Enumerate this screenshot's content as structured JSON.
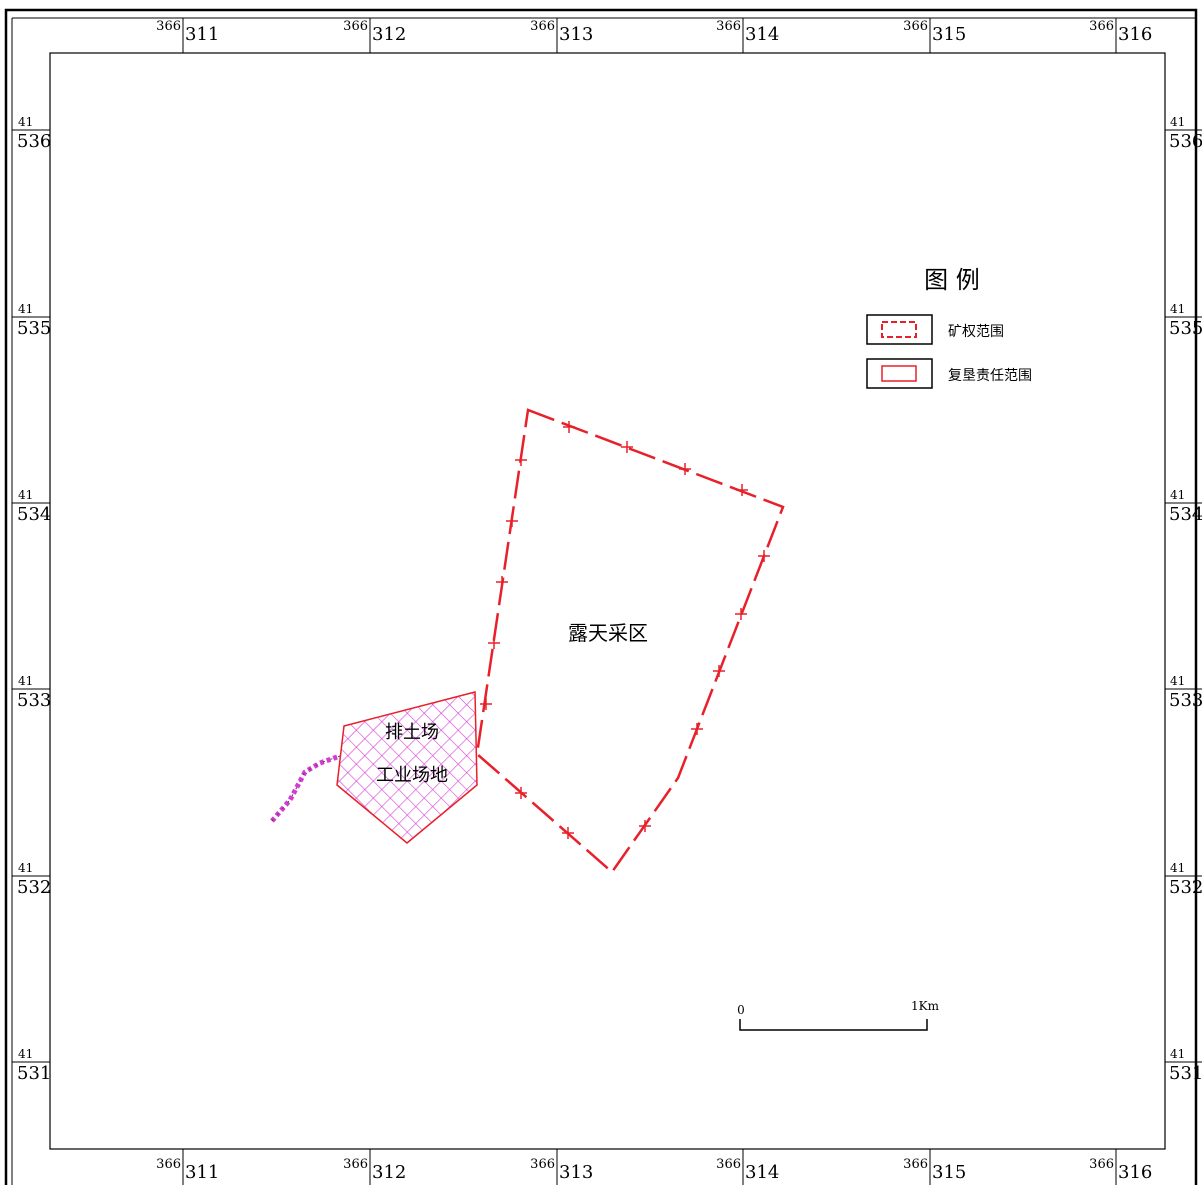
{
  "grid": {
    "easting_prefix": "366",
    "easting_labels": [
      "311",
      "312",
      "313",
      "314",
      "315",
      "316"
    ],
    "northing_prefix": "41",
    "northing_labels": [
      "536",
      "535",
      "534",
      "533",
      "532",
      "531"
    ]
  },
  "legend": {
    "title": "图 例",
    "items": [
      {
        "label": "矿权范围",
        "style": "dashed",
        "color": "#e8202a"
      },
      {
        "label": "复垦责任范围",
        "style": "solid",
        "color": "#e8202a"
      }
    ]
  },
  "areas": {
    "open_pit_label": "露天采区",
    "waste_dump_label": "排土场",
    "industrial_site_label": "工业场地"
  },
  "scale_bar": {
    "start_label": "0",
    "end_label": "1Km"
  },
  "colors": {
    "boundary": "#e8202a",
    "hatch": "#d63ad6",
    "frame": "#000000"
  }
}
